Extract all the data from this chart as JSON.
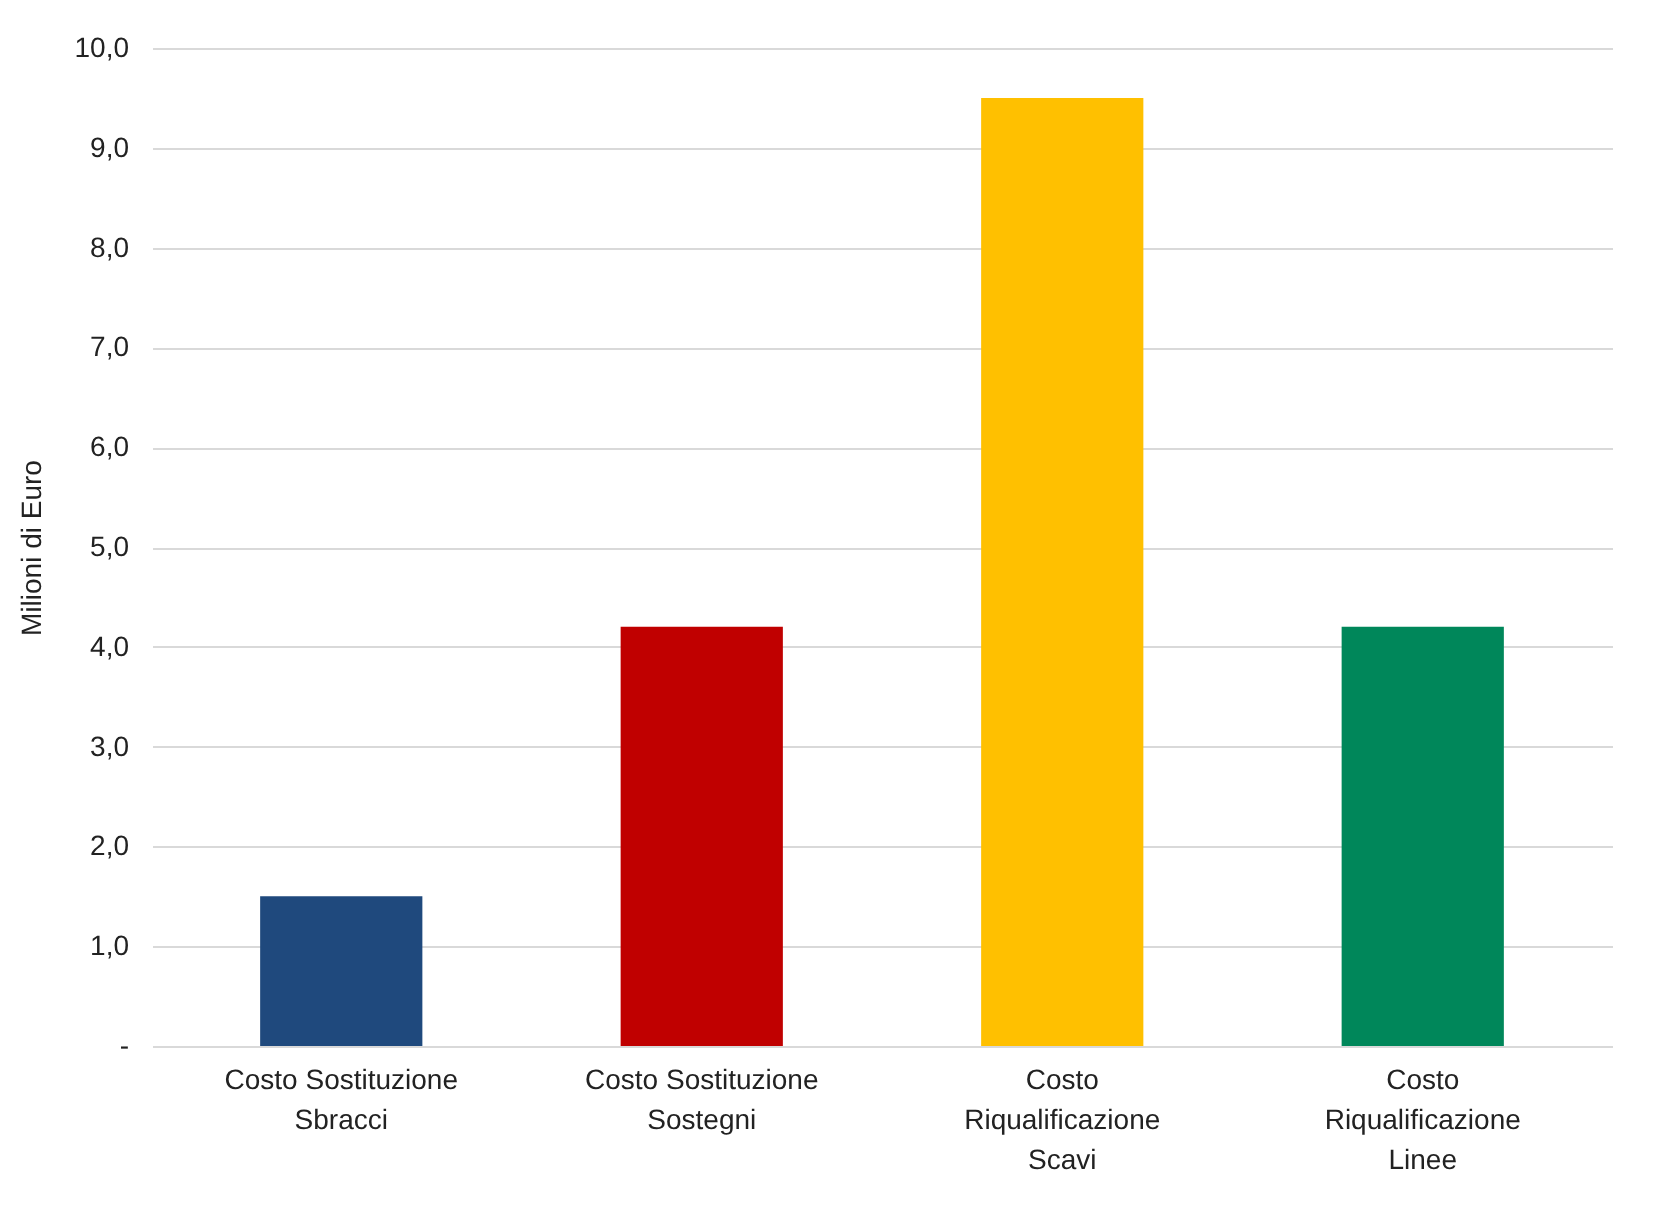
{
  "chart_data": {
    "type": "bar",
    "ylabel": "Milioni di Euro",
    "categories": [
      "Costo Sostituzione Sbracci",
      "Costo Sostituzione Sostegni",
      "Costo Riqualificazione Scavi",
      "Costo Riqualificazione Linee"
    ],
    "values": [
      1.5,
      4.2,
      9.5,
      4.2
    ],
    "colors": [
      "#1f497d",
      "#c00000",
      "#ffc000",
      "#00875a"
    ],
    "ylim": [
      0,
      10
    ],
    "yticks": [
      {
        "value": 0,
        "label": "-"
      },
      {
        "value": 1,
        "label": "1,0"
      },
      {
        "value": 2,
        "label": "2,0"
      },
      {
        "value": 3,
        "label": "3,0"
      },
      {
        "value": 4,
        "label": "4,0"
      },
      {
        "value": 5,
        "label": "5,0"
      },
      {
        "value": 6,
        "label": "6,0"
      },
      {
        "value": 7,
        "label": "7,0"
      },
      {
        "value": 8,
        "label": "8,0"
      },
      {
        "value": 9,
        "label": "9,0"
      },
      {
        "value": 10,
        "label": "10,0"
      }
    ],
    "grid": true
  }
}
